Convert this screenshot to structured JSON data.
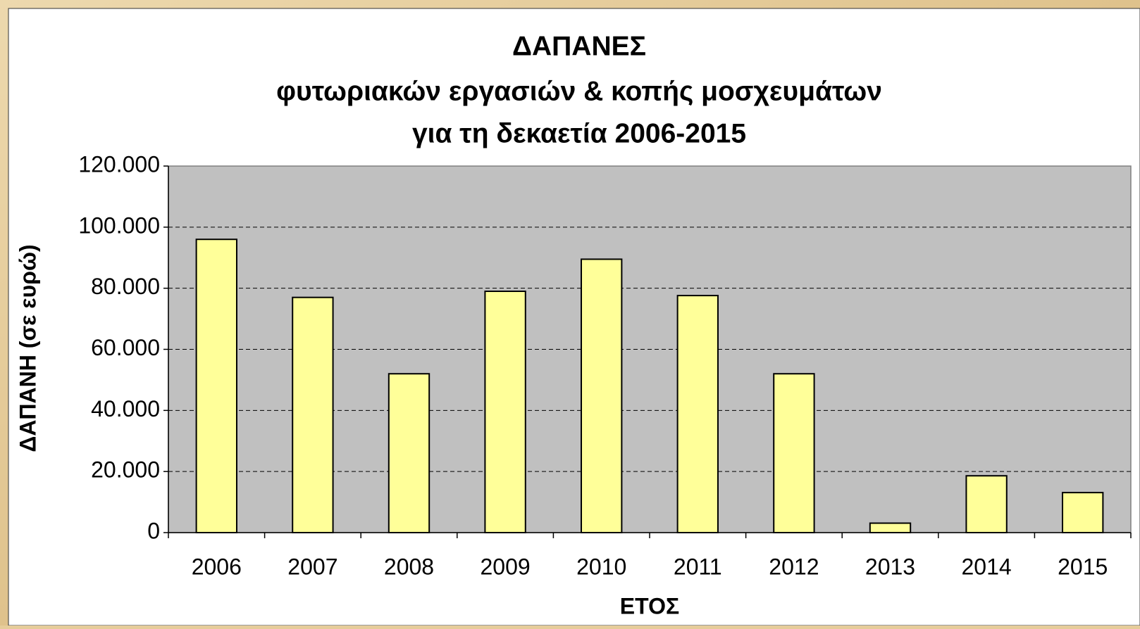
{
  "chart_data": {
    "type": "bar",
    "title": [
      "ΔΑΠΑΝΕΣ",
      "φυτωριακών εργασιών & κοπής μοσχευμάτων",
      "για τη δεκαετία 2006-2015"
    ],
    "x_label": "ΕΤΟΣ",
    "y_label": "ΔΑΠΑΝΗ (σε ευρώ)",
    "categories": [
      "2006",
      "2007",
      "2008",
      "2009",
      "2010",
      "2011",
      "2012",
      "2013",
      "2014",
      "2015"
    ],
    "values": [
      96000,
      77000,
      52000,
      79000,
      89500,
      77600,
      52000,
      3100,
      18600,
      13100
    ],
    "color": "#ffff99",
    "ylim": [
      0,
      120000
    ],
    "yticks": [
      0,
      {
        "value": 20000,
        "label": "20.000"
      },
      {
        "value": 40000,
        "label": "40.000"
      },
      {
        "value": 60000,
        "label": "60.000"
      },
      {
        "value": 80000,
        "label": "80.000"
      },
      {
        "value": 100000,
        "label": "100.000"
      },
      {
        "value": 120000,
        "label": "120.000"
      }
    ],
    "grid": true
  }
}
